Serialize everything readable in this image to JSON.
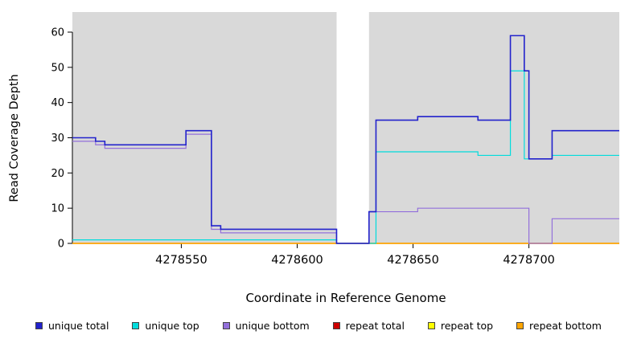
{
  "chart_data": {
    "type": "line",
    "subtype": "step",
    "title": "",
    "xlabel": "Coordinate in Reference Genome",
    "ylabel": "Read Coverage Depth",
    "xlim": [
      4278503,
      4278739
    ],
    "ylim": [
      0,
      63
    ],
    "x_ticks": [
      4278550,
      4278600,
      4278650,
      4278700
    ],
    "y_ticks": [
      0,
      10,
      20,
      30,
      40,
      50,
      60
    ],
    "grid": false,
    "legend_position": "bottom",
    "panel_color": "#d9d9d9",
    "background_panels": [
      {
        "x0": 4278503,
        "x1": 4278617,
        "color": "#d9d9d9"
      },
      {
        "x0": 4278631,
        "x1": 4278739,
        "color": "#d9d9d9"
      }
    ],
    "series": [
      {
        "name": "repeat total",
        "color": "#CD0000",
        "width": 1.3,
        "points": [
          [
            4278503,
            0
          ],
          [
            4278739,
            0
          ]
        ]
      },
      {
        "name": "repeat top",
        "color": "#FFFF00",
        "width": 1.3,
        "points": [
          [
            4278503,
            0
          ],
          [
            4278739,
            0
          ]
        ]
      },
      {
        "name": "repeat bottom",
        "color": "#FFA500",
        "width": 1.4,
        "points": [
          [
            4278503,
            0
          ],
          [
            4278739,
            0
          ]
        ]
      },
      {
        "name": "unique bottom",
        "color": "#9370DB",
        "width": 1.2,
        "points": [
          [
            4278503,
            29
          ],
          [
            4278513,
            28
          ],
          [
            4278517,
            27
          ],
          [
            4278552,
            31
          ],
          [
            4278563,
            4
          ],
          [
            4278567,
            3
          ],
          [
            4278617,
            0
          ],
          [
            4278631,
            9
          ],
          [
            4278652,
            10
          ],
          [
            4278700,
            0
          ],
          [
            4278710,
            7
          ],
          [
            4278739,
            7
          ]
        ]
      },
      {
        "name": "unique top",
        "color": "#00DCDC",
        "width": 1.2,
        "points": [
          [
            4278503,
            1
          ],
          [
            4278617,
            0
          ],
          [
            4278634,
            26
          ],
          [
            4278678,
            25
          ],
          [
            4278692,
            49
          ],
          [
            4278698,
            24
          ],
          [
            4278710,
            25
          ],
          [
            4278739,
            25
          ]
        ]
      },
      {
        "name": "unique total",
        "color": "#2222CC",
        "width": 1.6,
        "points": [
          [
            4278503,
            30
          ],
          [
            4278513,
            29
          ],
          [
            4278517,
            28
          ],
          [
            4278552,
            32
          ],
          [
            4278563,
            5
          ],
          [
            4278567,
            4
          ],
          [
            4278617,
            0
          ],
          [
            4278631,
            9
          ],
          [
            4278634,
            35
          ],
          [
            4278652,
            36
          ],
          [
            4278678,
            35
          ],
          [
            4278692,
            59
          ],
          [
            4278698,
            49
          ],
          [
            4278700,
            24
          ],
          [
            4278710,
            32
          ],
          [
            4278739,
            32
          ]
        ]
      }
    ]
  },
  "legend": {
    "items": [
      {
        "label": "unique total",
        "color": "#2222CC"
      },
      {
        "label": "unique top",
        "color": "#00DCDC"
      },
      {
        "label": "unique bottom",
        "color": "#9370DB"
      },
      {
        "label": "repeat total",
        "color": "#CD0000"
      },
      {
        "label": "repeat top",
        "color": "#FFFF00"
      },
      {
        "label": "repeat bottom",
        "color": "#FFA500"
      }
    ]
  }
}
